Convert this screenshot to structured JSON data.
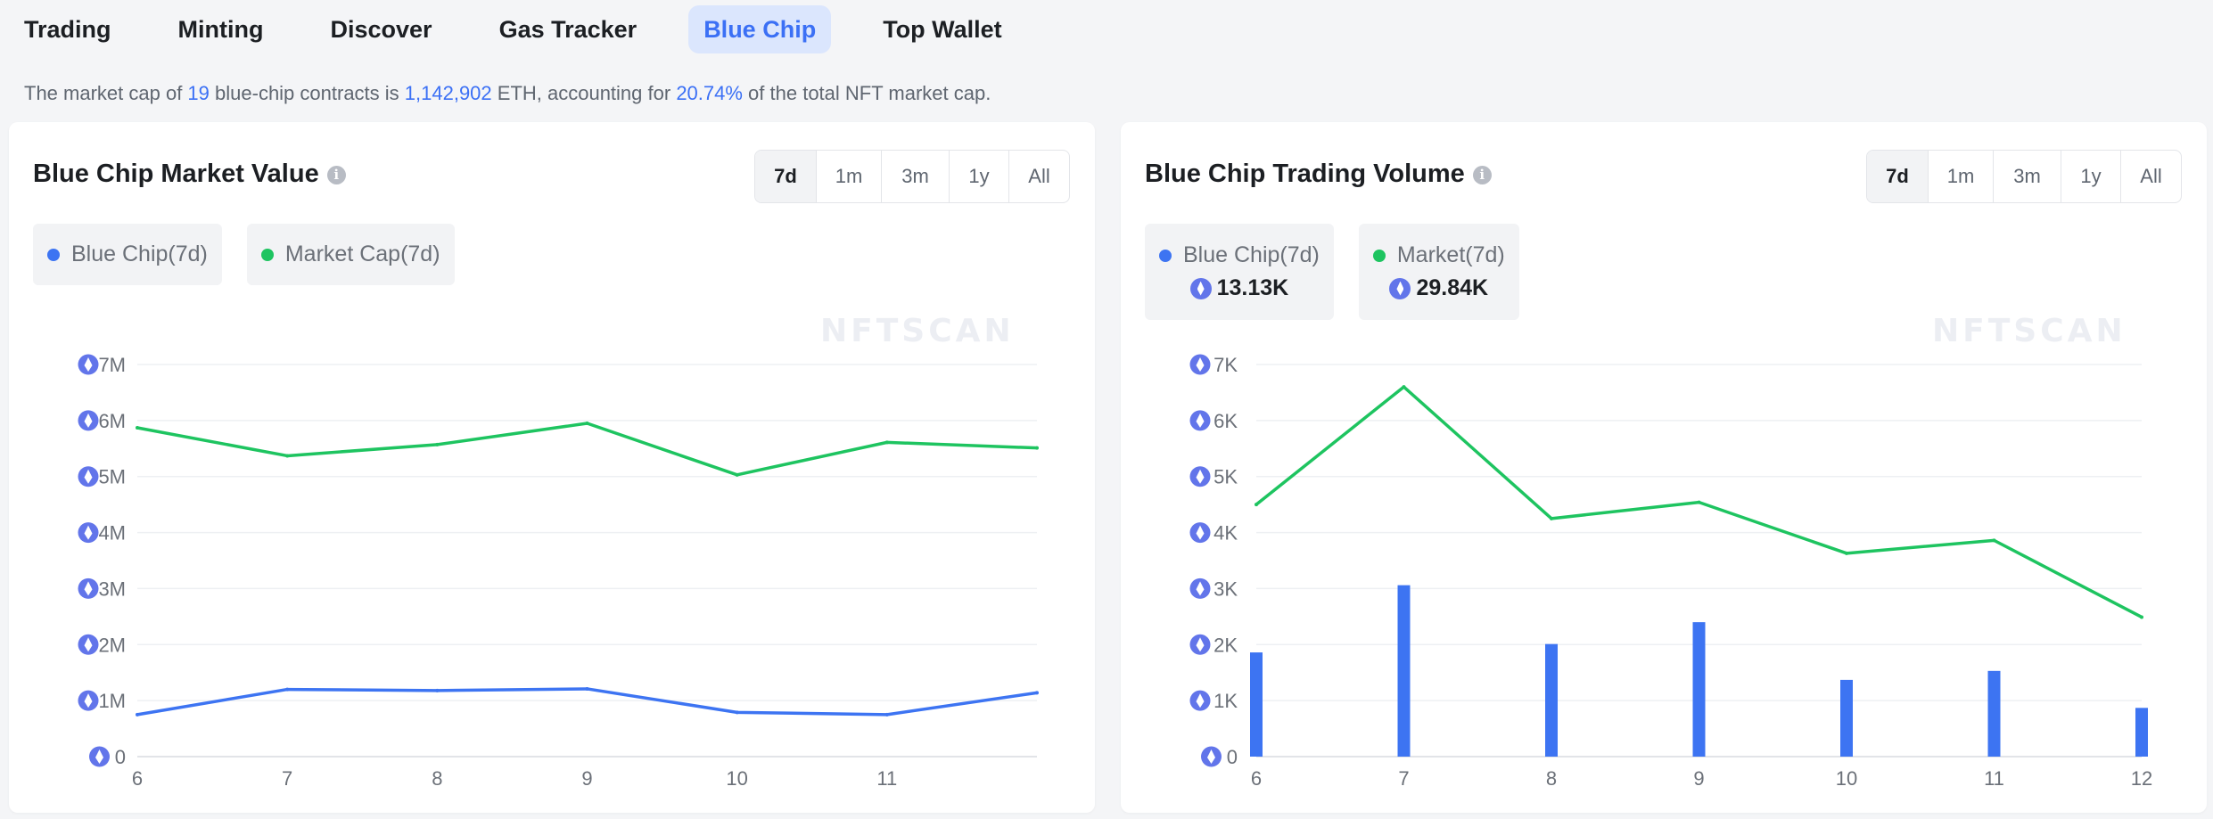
{
  "nav": {
    "tabs": [
      {
        "label": "Trading",
        "active": false
      },
      {
        "label": "Minting",
        "active": false
      },
      {
        "label": "Discover",
        "active": false
      },
      {
        "label": "Gas Tracker",
        "active": false
      },
      {
        "label": "Blue Chip",
        "active": true
      },
      {
        "label": "Top Wallet",
        "active": false
      }
    ]
  },
  "summary": {
    "prefix": "The market cap of ",
    "contracts": "19",
    "mid1": " blue-chip contracts is ",
    "market_cap": "1,142,902",
    "mid2": " ETH, accounting for ",
    "share": "20.74%",
    "suffix": " of the total NFT market cap."
  },
  "colors": {
    "blue": "#3d74f2",
    "green": "#1ec460",
    "accent": "#3b70f5"
  },
  "market_value": {
    "title": "Blue Chip Market Value",
    "ranges": [
      "7d",
      "1m",
      "3m",
      "1y",
      "All"
    ],
    "active_range": "7d",
    "legend": [
      {
        "label": "Blue Chip(7d)",
        "color": "#3d74f2",
        "icon": "blue-dot"
      },
      {
        "label": "Market Cap(7d)",
        "color": "#1ec460",
        "icon": "green-dot"
      }
    ],
    "watermark": "NFTSCAN"
  },
  "trading_volume": {
    "title": "Blue Chip Trading Volume",
    "ranges": [
      "7d",
      "1m",
      "3m",
      "1y",
      "All"
    ],
    "active_range": "7d",
    "legend": [
      {
        "label": "Blue Chip(7d)",
        "value": "13.13K",
        "color": "#3d74f2",
        "icon": "blue-dot"
      },
      {
        "label": "Market(7d)",
        "value": "29.84K",
        "color": "#1ec460",
        "icon": "green-dot"
      }
    ],
    "watermark": "NFTSCAN"
  },
  "chart_data": [
    {
      "type": "line",
      "title": "Blue Chip Market Value",
      "x": [
        6,
        7,
        8,
        9,
        10,
        11,
        12
      ],
      "xtick_labels": [
        "6",
        "7",
        "8",
        "9",
        "10",
        "11"
      ],
      "ytick_labels": [
        "0",
        "1M",
        "2M",
        "3M",
        "4M",
        "5M",
        "6M",
        "7M"
      ],
      "ylim": [
        0,
        7000000
      ],
      "grid": true,
      "series": [
        {
          "name": "Blue Chip(7d)",
          "kind": "line",
          "color": "#3d74f2",
          "values": [
            750000,
            1200000,
            1180000,
            1210000,
            790000,
            750000,
            1140000
          ]
        },
        {
          "name": "Market Cap(7d)",
          "kind": "line",
          "color": "#1ec460",
          "values": [
            5870000,
            5370000,
            5570000,
            5950000,
            5030000,
            5610000,
            5510000
          ]
        }
      ]
    },
    {
      "type": "bar",
      "title": "Blue Chip Trading Volume",
      "x": [
        6,
        7,
        8,
        9,
        10,
        11,
        12
      ],
      "xtick_labels": [
        "6",
        "7",
        "8",
        "9",
        "10",
        "11",
        "12"
      ],
      "ytick_labels": [
        "0",
        "1K",
        "2K",
        "3K",
        "4K",
        "5K",
        "6K",
        "7K"
      ],
      "ylim": [
        0,
        7000
      ],
      "grid": true,
      "series": [
        {
          "name": "Blue Chip(7d)",
          "kind": "bar",
          "color": "#3d74f2",
          "values": [
            1860,
            3060,
            2010,
            2400,
            1370,
            1530,
            870
          ]
        },
        {
          "name": "Market(7d)",
          "kind": "line",
          "color": "#1ec460",
          "values": [
            4500,
            6600,
            4250,
            4540,
            3630,
            3860,
            2490
          ]
        }
      ]
    }
  ]
}
